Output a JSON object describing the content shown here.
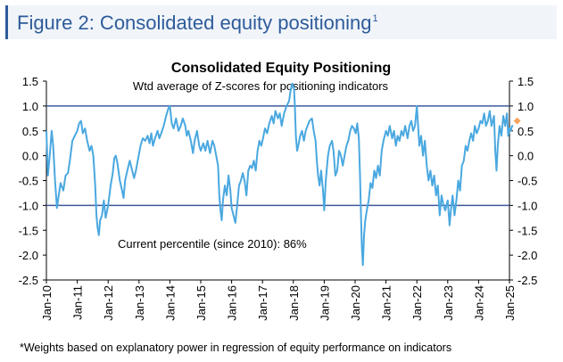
{
  "figure": {
    "title": "Figure 2: Consolidated equity positioning",
    "title_superscript": "1",
    "footnote": "*Weights based on explanatory power in regression of equity performance on indicators"
  },
  "chart_data": {
    "type": "line",
    "title": "Consolidated Equity Positioning",
    "subtitle": "Wtd average of Z-scores for positioning indicators",
    "annotation": "Current percentile (since 2010): 86%",
    "xlabel": "",
    "ylabel": "",
    "xlim": [
      2010.0,
      2025.0
    ],
    "ylim": [
      -2.5,
      1.5
    ],
    "y_ticks": [
      "1.5",
      "1.0",
      "0.5",
      "0.0",
      "-0.5",
      "-1.0",
      "-1.5",
      "-2.0",
      "-2.5"
    ],
    "x_ticks": [
      "Jan-10",
      "Jan-11",
      "Jan-12",
      "Jan-13",
      "Jan-14",
      "Jan-15",
      "Jan-16",
      "Jan-17",
      "Jan-18",
      "Jan-19",
      "Jan-20",
      "Jan-21",
      "Jan-22",
      "Jan-23",
      "Jan-24",
      "Jan-25"
    ],
    "reference_lines": [
      1.0,
      -1.0
    ],
    "grid": false,
    "colors": {
      "series": "#4aa8e0",
      "reference": "#3b5a9c",
      "marker": "#f4a460"
    },
    "series": [
      {
        "values": [
          [
            2010.0,
            0.5
          ],
          [
            2010.05,
            -0.4
          ],
          [
            2010.12,
            0.1
          ],
          [
            2010.17,
            0.5
          ],
          [
            2010.22,
            0.2
          ],
          [
            2010.28,
            -0.5
          ],
          [
            2010.34,
            -1.05
          ],
          [
            2010.4,
            -0.8
          ],
          [
            2010.46,
            -0.55
          ],
          [
            2010.55,
            -0.7
          ],
          [
            2010.62,
            -0.4
          ],
          [
            2010.7,
            -0.35
          ],
          [
            2010.76,
            -0.1
          ],
          [
            2010.84,
            0.3
          ],
          [
            2010.92,
            0.4
          ],
          [
            2011.0,
            0.5
          ],
          [
            2011.06,
            0.65
          ],
          [
            2011.12,
            0.7
          ],
          [
            2011.18,
            0.45
          ],
          [
            2011.25,
            0.55
          ],
          [
            2011.32,
            0.3
          ],
          [
            2011.4,
            0.1
          ],
          [
            2011.46,
            0.2
          ],
          [
            2011.52,
            0.0
          ],
          [
            2011.58,
            -0.6
          ],
          [
            2011.62,
            -1.2
          ],
          [
            2011.66,
            -1.45
          ],
          [
            2011.7,
            -1.6
          ],
          [
            2011.74,
            -1.3
          ],
          [
            2011.8,
            -1.2
          ],
          [
            2011.86,
            -0.9
          ],
          [
            2011.92,
            -1.25
          ],
          [
            2012.0,
            -1.0
          ],
          [
            2012.08,
            -0.6
          ],
          [
            2012.15,
            -0.35
          ],
          [
            2012.2,
            -0.05
          ],
          [
            2012.25,
            0.0
          ],
          [
            2012.3,
            -0.15
          ],
          [
            2012.38,
            -0.5
          ],
          [
            2012.45,
            -0.7
          ],
          [
            2012.5,
            -0.85
          ],
          [
            2012.55,
            -0.5
          ],
          [
            2012.62,
            -0.3
          ],
          [
            2012.7,
            -0.1
          ],
          [
            2012.78,
            -0.3
          ],
          [
            2012.84,
            -0.45
          ],
          [
            2012.9,
            -0.3
          ],
          [
            2012.96,
            -0.1
          ],
          [
            2013.05,
            0.2
          ],
          [
            2013.12,
            0.35
          ],
          [
            2013.2,
            0.3
          ],
          [
            2013.28,
            0.4
          ],
          [
            2013.34,
            0.25
          ],
          [
            2013.4,
            0.45
          ],
          [
            2013.45,
            0.2
          ],
          [
            2013.52,
            0.35
          ],
          [
            2013.6,
            0.5
          ],
          [
            2013.66,
            0.35
          ],
          [
            2013.72,
            0.45
          ],
          [
            2013.8,
            0.6
          ],
          [
            2013.88,
            0.8
          ],
          [
            2013.95,
            0.95
          ],
          [
            2014.0,
            1.0
          ],
          [
            2014.06,
            0.65
          ],
          [
            2014.12,
            0.55
          ],
          [
            2014.2,
            0.75
          ],
          [
            2014.28,
            0.5
          ],
          [
            2014.35,
            0.6
          ],
          [
            2014.42,
            0.75
          ],
          [
            2014.5,
            0.6
          ],
          [
            2014.55,
            0.4
          ],
          [
            2014.6,
            0.5
          ],
          [
            2014.68,
            0.3
          ],
          [
            2014.75,
            0.05
          ],
          [
            2014.8,
            0.3
          ],
          [
            2014.88,
            0.5
          ],
          [
            2014.95,
            0.2
          ],
          [
            2015.0,
            0.1
          ],
          [
            2015.08,
            0.25
          ],
          [
            2015.15,
            0.1
          ],
          [
            2015.22,
            0.3
          ],
          [
            2015.3,
            0.05
          ],
          [
            2015.38,
            0.3
          ],
          [
            2015.44,
            0.2
          ],
          [
            2015.5,
            0.0
          ],
          [
            2015.56,
            -0.2
          ],
          [
            2015.6,
            -0.8
          ],
          [
            2015.64,
            -1.1
          ],
          [
            2015.68,
            -1.3
          ],
          [
            2015.72,
            -0.9
          ],
          [
            2015.78,
            -0.6
          ],
          [
            2015.84,
            -0.8
          ],
          [
            2015.9,
            -0.4
          ],
          [
            2015.96,
            -0.7
          ],
          [
            2016.0,
            -1.05
          ],
          [
            2016.06,
            -1.2
          ],
          [
            2016.12,
            -1.35
          ],
          [
            2016.18,
            -1.0
          ],
          [
            2016.24,
            -0.6
          ],
          [
            2016.3,
            -0.5
          ],
          [
            2016.36,
            -0.35
          ],
          [
            2016.42,
            -0.5
          ],
          [
            2016.48,
            -0.8
          ],
          [
            2016.54,
            -0.3
          ],
          [
            2016.6,
            -0.2
          ],
          [
            2016.66,
            -0.25
          ],
          [
            2016.72,
            -0.1
          ],
          [
            2016.78,
            -0.3
          ],
          [
            2016.84,
            0.1
          ],
          [
            2016.9,
            0.3
          ],
          [
            2016.96,
            0.2
          ],
          [
            2017.0,
            0.3
          ],
          [
            2017.08,
            0.55
          ],
          [
            2017.15,
            0.45
          ],
          [
            2017.22,
            0.65
          ],
          [
            2017.3,
            0.8
          ],
          [
            2017.36,
            0.65
          ],
          [
            2017.42,
            0.9
          ],
          [
            2017.5,
            0.75
          ],
          [
            2017.56,
            0.85
          ],
          [
            2017.62,
            0.6
          ],
          [
            2017.7,
            0.85
          ],
          [
            2017.78,
            1.0
          ],
          [
            2017.86,
            1.1
          ],
          [
            2017.92,
            1.35
          ],
          [
            2017.97,
            1.45
          ],
          [
            2018.02,
            1.35
          ],
          [
            2018.05,
            1.0
          ],
          [
            2018.08,
            0.4
          ],
          [
            2018.12,
            0.1
          ],
          [
            2018.16,
            0.2
          ],
          [
            2018.22,
            0.4
          ],
          [
            2018.28,
            0.5
          ],
          [
            2018.34,
            0.3
          ],
          [
            2018.4,
            0.5
          ],
          [
            2018.46,
            0.6
          ],
          [
            2018.52,
            0.7
          ],
          [
            2018.6,
            0.75
          ],
          [
            2018.66,
            0.5
          ],
          [
            2018.72,
            0.3
          ],
          [
            2018.76,
            -0.1
          ],
          [
            2018.8,
            -0.4
          ],
          [
            2018.85,
            -0.6
          ],
          [
            2018.9,
            -0.3
          ],
          [
            2018.96,
            -0.7
          ],
          [
            2019.0,
            -1.1
          ],
          [
            2019.05,
            -0.5
          ],
          [
            2019.12,
            0.0
          ],
          [
            2019.18,
            0.2
          ],
          [
            2019.25,
            0.3
          ],
          [
            2019.3,
            0.1
          ],
          [
            2019.36,
            -0.4
          ],
          [
            2019.42,
            -0.3
          ],
          [
            2019.48,
            0.1
          ],
          [
            2019.54,
            0.0
          ],
          [
            2019.6,
            -0.2
          ],
          [
            2019.66,
            0.0
          ],
          [
            2019.72,
            0.2
          ],
          [
            2019.78,
            0.3
          ],
          [
            2019.84,
            0.5
          ],
          [
            2019.9,
            0.6
          ],
          [
            2019.96,
            0.55
          ],
          [
            2020.02,
            0.45
          ],
          [
            2020.07,
            0.65
          ],
          [
            2020.12,
            0.35
          ],
          [
            2020.16,
            -0.4
          ],
          [
            2020.19,
            -1.2
          ],
          [
            2020.22,
            -1.85
          ],
          [
            2020.25,
            -2.2
          ],
          [
            2020.29,
            -1.6
          ],
          [
            2020.33,
            -1.3
          ],
          [
            2020.38,
            -1.1
          ],
          [
            2020.44,
            -0.9
          ],
          [
            2020.5,
            -0.55
          ],
          [
            2020.56,
            -0.65
          ],
          [
            2020.62,
            -0.3
          ],
          [
            2020.68,
            -0.45
          ],
          [
            2020.74,
            -0.2
          ],
          [
            2020.8,
            -0.4
          ],
          [
            2020.86,
            0.1
          ],
          [
            2020.92,
            0.3
          ],
          [
            2021.0,
            0.5
          ],
          [
            2021.06,
            0.4
          ],
          [
            2021.12,
            0.6
          ],
          [
            2021.2,
            0.35
          ],
          [
            2021.26,
            0.5
          ],
          [
            2021.32,
            0.2
          ],
          [
            2021.38,
            0.4
          ],
          [
            2021.44,
            0.3
          ],
          [
            2021.5,
            0.5
          ],
          [
            2021.56,
            0.4
          ],
          [
            2021.62,
            0.6
          ],
          [
            2021.7,
            0.35
          ],
          [
            2021.76,
            0.6
          ],
          [
            2021.82,
            0.7
          ],
          [
            2021.88,
            0.5
          ],
          [
            2021.94,
            0.6
          ],
          [
            2022.0,
            1.0
          ],
          [
            2022.04,
            0.6
          ],
          [
            2022.08,
            0.2
          ],
          [
            2022.14,
            0.4
          ],
          [
            2022.2,
            0.0
          ],
          [
            2022.26,
            0.3
          ],
          [
            2022.32,
            -0.2
          ],
          [
            2022.38,
            -0.5
          ],
          [
            2022.44,
            -0.3
          ],
          [
            2022.5,
            -0.6
          ],
          [
            2022.56,
            -0.4
          ],
          [
            2022.62,
            -0.8
          ],
          [
            2022.68,
            -0.6
          ],
          [
            2022.74,
            -1.2
          ],
          [
            2022.8,
            -0.8
          ],
          [
            2022.86,
            -1.0
          ],
          [
            2022.92,
            -1.1
          ],
          [
            2023.0,
            -0.9
          ],
          [
            2023.06,
            -1.4
          ],
          [
            2023.1,
            -1.1
          ],
          [
            2023.16,
            -0.8
          ],
          [
            2023.22,
            -1.2
          ],
          [
            2023.28,
            -0.9
          ],
          [
            2023.34,
            -0.5
          ],
          [
            2023.4,
            -0.7
          ],
          [
            2023.46,
            -0.2
          ],
          [
            2023.52,
            -0.1
          ],
          [
            2023.58,
            0.2
          ],
          [
            2023.64,
            0.1
          ],
          [
            2023.7,
            0.3
          ],
          [
            2023.76,
            0.45
          ],
          [
            2023.82,
            0.3
          ],
          [
            2023.88,
            0.6
          ],
          [
            2023.94,
            0.45
          ],
          [
            2024.0,
            0.55
          ],
          [
            2024.06,
            0.7
          ],
          [
            2024.12,
            0.65
          ],
          [
            2024.18,
            0.85
          ],
          [
            2024.24,
            0.6
          ],
          [
            2024.3,
            0.7
          ],
          [
            2024.36,
            0.9
          ],
          [
            2024.42,
            0.6
          ],
          [
            2024.46,
            0.7
          ],
          [
            2024.5,
            0.8
          ],
          [
            2024.54,
            0.1
          ],
          [
            2024.58,
            -0.3
          ],
          [
            2024.62,
            0.2
          ],
          [
            2024.68,
            0.6
          ],
          [
            2024.74,
            0.4
          ],
          [
            2024.8,
            0.8
          ],
          [
            2024.86,
            0.6
          ],
          [
            2024.92,
            0.85
          ],
          [
            2024.96,
            0.4
          ],
          [
            2025.0,
            0.55
          ],
          [
            2025.04,
            0.5
          ],
          [
            2025.08,
            0.6
          ],
          [
            2025.12,
            0.6
          ]
        ]
      }
    ],
    "current_marker": [
      2025.25,
      0.7
    ]
  }
}
